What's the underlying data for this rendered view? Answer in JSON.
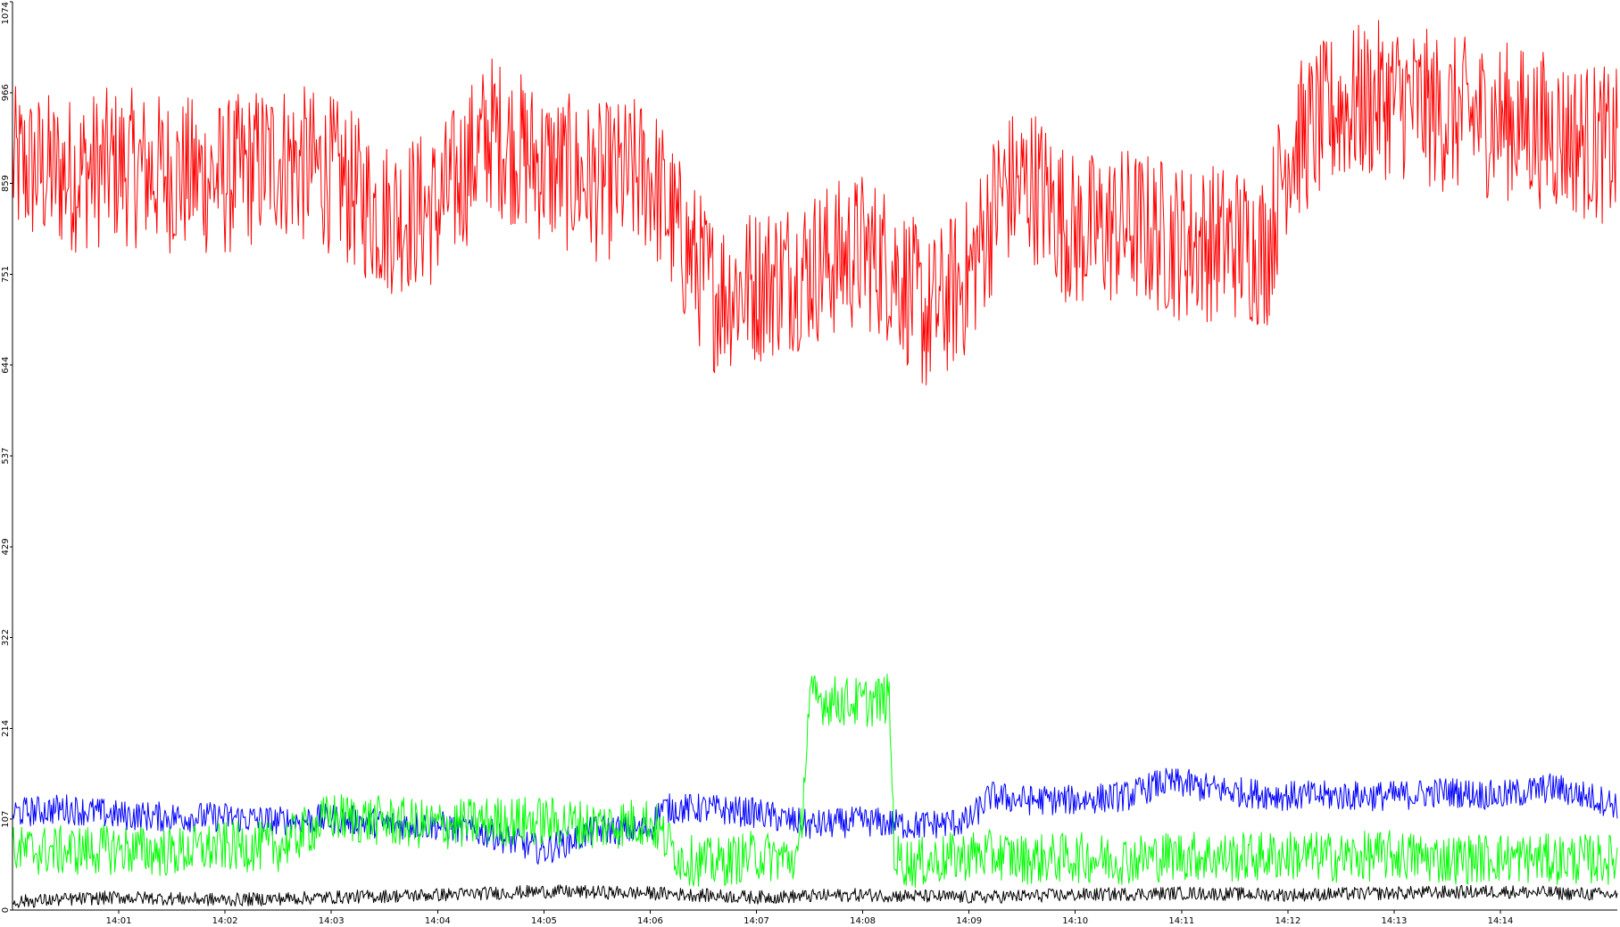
{
  "chart_data": {
    "type": "line",
    "title": "",
    "xlabel": "",
    "ylabel": "",
    "ylim": [
      0,
      1074
    ],
    "y_ticks": [
      "0",
      "107",
      "214",
      "322",
      "429",
      "537",
      "644",
      "751",
      "859",
      "966",
      "1074"
    ],
    "x_ticks": [
      "14:01",
      "14:02",
      "14:03",
      "14:04",
      "14:05",
      "14:06",
      "14:07",
      "14:08",
      "14:09",
      "14:10",
      "14:11",
      "14:12",
      "14:13",
      "14:14"
    ],
    "grid": false,
    "legend": "none",
    "x_range_minutes": [
      0,
      15.1
    ],
    "x_tick_minutes": [
      1,
      2,
      3,
      4,
      5,
      6,
      7,
      8,
      9,
      10,
      11,
      12,
      13,
      14
    ],
    "series": [
      {
        "color": "#ff0000",
        "x": [
          0,
          0.5,
          1.0,
          1.5,
          2.0,
          2.5,
          3.0,
          3.5,
          4.0,
          4.5,
          5.0,
          5.5,
          6.0,
          6.3,
          6.6,
          7.0,
          7.5,
          8.0,
          8.3,
          8.6,
          9.0,
          9.3,
          9.6,
          10.0,
          10.5,
          11.0,
          11.5,
          11.8,
          12.0,
          12.5,
          13.0,
          13.5,
          14.0,
          14.5,
          15.1
        ],
        "values": [
          880,
          870,
          880,
          870,
          865,
          890,
          870,
          820,
          830,
          920,
          880,
          860,
          870,
          790,
          730,
          740,
          760,
          780,
          760,
          700,
          750,
          850,
          860,
          800,
          810,
          790,
          790,
          780,
          900,
          950,
          960,
          940,
          935,
          920,
          900
        ]
      },
      {
        "color": "#0000ff",
        "x": [
          0,
          0.5,
          1.0,
          1.5,
          2.0,
          2.5,
          3.0,
          3.5,
          4.0,
          4.5,
          5.0,
          5.5,
          6.0,
          6.1,
          6.5,
          7.0,
          7.5,
          8.0,
          8.5,
          9.0,
          9.2,
          9.5,
          10.0,
          10.5,
          10.8,
          11.0,
          11.2,
          11.5,
          12.0,
          12.5,
          13.0,
          13.5,
          14.0,
          14.5,
          15.1
        ],
        "values": [
          115,
          120,
          112,
          110,
          110,
          105,
          108,
          102,
          100,
          90,
          70,
          95,
          95,
          120,
          120,
          115,
          100,
          105,
          100,
          105,
          135,
          130,
          130,
          135,
          150,
          150,
          145,
          140,
          135,
          135,
          135,
          140,
          135,
          145,
          125
        ]
      },
      {
        "color": "#00ff00",
        "x": [
          0,
          0.5,
          1.0,
          1.5,
          2.0,
          2.5,
          3.0,
          3.5,
          4.0,
          4.5,
          5.0,
          5.5,
          6.0,
          6.3,
          6.6,
          7.0,
          7.4,
          7.5,
          8.0,
          8.25,
          8.3,
          8.5,
          9.0,
          9.3,
          9.5,
          10.0,
          10.5,
          11.0,
          11.5,
          12.0,
          12.5,
          13.0,
          13.5,
          14.0,
          14.5,
          15.1
        ],
        "values": [
          70,
          70,
          72,
          68,
          75,
          75,
          110,
          105,
          100,
          105,
          105,
          100,
          105,
          60,
          55,
          65,
          60,
          250,
          245,
          250,
          60,
          55,
          65,
          65,
          60,
          62,
          60,
          65,
          62,
          65,
          62,
          65,
          60,
          62,
          60,
          60
        ]
      },
      {
        "color": "#000000",
        "x": [
          0,
          1.0,
          2.0,
          3.0,
          4.0,
          5.0,
          6.0,
          7.0,
          8.0,
          9.0,
          10.0,
          11.0,
          12.0,
          13.0,
          14.0,
          15.1
        ],
        "values": [
          10,
          15,
          12,
          15,
          18,
          22,
          20,
          15,
          18,
          15,
          18,
          20,
          18,
          20,
          22,
          18
        ]
      }
    ]
  }
}
